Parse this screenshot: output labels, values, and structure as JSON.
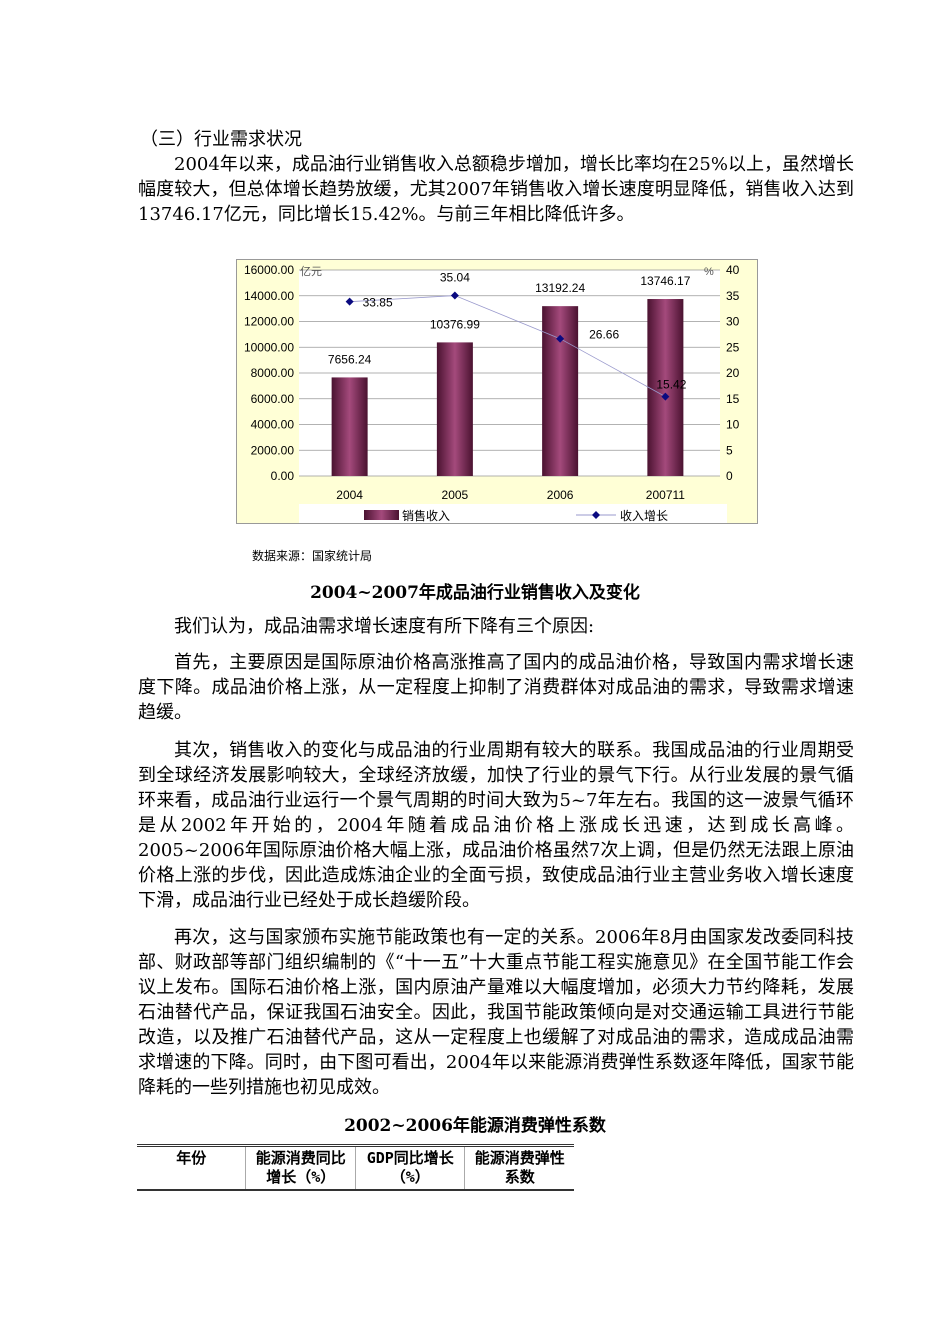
{
  "section_title": "（三）行业需求状况",
  "paragraphs": [
    "2004年以来，成品油行业销售收入总额稳步增加，增长比率均在25%以上，虽然增长幅度较大，但总体增长趋势放缓，尤其2007年销售收入增长速度明显降低，销售收入达到13746.17亿元，同比增长15.42%。与前三年相比降低许多。",
    "我们认为，成品油需求增长速度有所下降有三个原因:",
    "首先，主要原因是国际原油价格高涨推高了国内的成品油价格，导致国内需求增长速度下降。成品油价格上涨，从一定程度上抑制了消费群体对成品油的需求，导致需求增速趋缓。",
    "其次，销售收入的变化与成品油的行业周期有较大的联系。我国成品油的行业周期受到全球经济发展影响较大，全球经济放缓，加快了行业的景气下行。从行业发展的景气循环来看，成品油行业运行一个景气周期的时间大致为5~7年左右。我国的这一波景气循环是从2002年开始的，2004年随着成品油价格上涨成长迅速，达到成长高峰。2005~2006年国际原油价格大幅上涨，成品油价格虽然7次上调，但是仍然无法跟上原油价格上涨的步伐，因此造成炼油企业的全面亏损，致使成品油行业主营业务收入增长速度下滑，成品油行业已经处于成长趋缓阶段。",
    "再次，这与国家颁布实施节能政策也有一定的关系。2006年8月由国家发改委同科技部、财政部等部门组织编制的《“十一五”十大重点节能工程实施意见》在全国节能工作会议上发布。国际石油价格上涨，国内原油产量难以大幅度增加，必须大力节约降耗，发展石油替代产品，保证我国石油安全。因此，我国节能政策倾向是对交通运输工具进行节能改造，以及推广石油替代产品，这从一定程度上也缓解了对成品油的需求，造成成品油需求增速的下降。同时，由下图可看出，2004年以来能源消费弹性系数逐年降低，国家节能降耗的一些列措施也初见成效。"
  ],
  "source": "数据来源：国家统计局",
  "chart_caption": "2004~2007年成品油行业销售收入及变化",
  "chart_data": {
    "type": "bar",
    "categories": [
      "2004",
      "2005",
      "2006",
      "200711"
    ],
    "series": [
      {
        "name": "销售收入",
        "type": "bar",
        "axis": "left",
        "values": [
          7656.24,
          10376.99,
          13192.24,
          13746.17
        ],
        "color": "#7a2a55"
      },
      {
        "name": "收入增长",
        "type": "line",
        "axis": "right",
        "values": [
          33.85,
          35.04,
          26.66,
          15.42
        ],
        "color": "#0a0a80"
      }
    ],
    "left_unit": "亿元",
    "right_unit": "%",
    "ylim_left": [
      0,
      16000
    ],
    "yticks_left": [
      "0.00",
      "2000.00",
      "4000.00",
      "6000.00",
      "8000.00",
      "10000.00",
      "12000.00",
      "14000.00",
      "16000.00"
    ],
    "ylim_right": [
      0,
      40
    ],
    "yticks_right": [
      "0",
      "5",
      "10",
      "15",
      "20",
      "25",
      "30",
      "35",
      "40"
    ],
    "grid": true,
    "legend": "bottom",
    "background": "#ffffd6"
  },
  "table": {
    "title": "2002~2006年能源消费弹性系数",
    "headers": [
      "年份",
      "能源消费同比增长（%）",
      "GDP同比增长（%）",
      "能源消费弹性系数"
    ]
  }
}
